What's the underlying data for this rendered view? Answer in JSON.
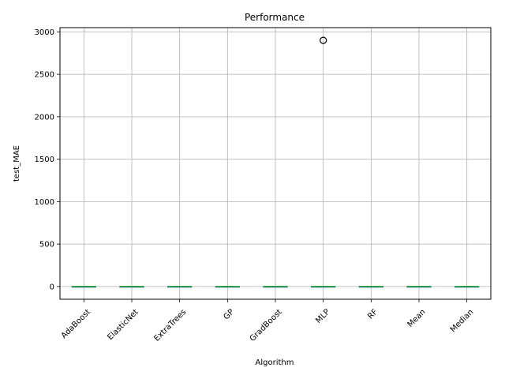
{
  "chart_data": {
    "type": "box",
    "title": "Performance",
    "xlabel": "Algorithm",
    "ylabel": "test_MAE",
    "categories": [
      "AdaBoost",
      "ElasticNet",
      "ExtraTrees",
      "GP",
      "GradBoost",
      "MLP",
      "RF",
      "Mean",
      "Median"
    ],
    "ylim": [
      -150,
      3050
    ],
    "yticks": [
      0,
      500,
      1000,
      1500,
      2000,
      2500,
      3000
    ],
    "grid": true,
    "boxes": [
      {
        "category": "AdaBoost",
        "whisker_low": -2,
        "q1": -1,
        "median": 0,
        "q3": 1,
        "whisker_high": 2,
        "outliers": []
      },
      {
        "category": "ElasticNet",
        "whisker_low": -2,
        "q1": -1,
        "median": 0,
        "q3": 1,
        "whisker_high": 2,
        "outliers": []
      },
      {
        "category": "ExtraTrees",
        "whisker_low": -2,
        "q1": -1,
        "median": 0,
        "q3": 1,
        "whisker_high": 2,
        "outliers": []
      },
      {
        "category": "GP",
        "whisker_low": -2,
        "q1": -1,
        "median": 0,
        "q3": 1,
        "whisker_high": 2,
        "outliers": []
      },
      {
        "category": "GradBoost",
        "whisker_low": -2,
        "q1": -1,
        "median": 0,
        "q3": 1,
        "whisker_high": 2,
        "outliers": []
      },
      {
        "category": "MLP",
        "whisker_low": -2,
        "q1": -1,
        "median": 0,
        "q3": 1,
        "whisker_high": 2,
        "outliers": [
          2900
        ]
      },
      {
        "category": "RF",
        "whisker_low": -2,
        "q1": -1,
        "median": 0,
        "q3": 1,
        "whisker_high": 2,
        "outliers": []
      },
      {
        "category": "Mean",
        "whisker_low": -2,
        "q1": -1,
        "median": 0,
        "q3": 1,
        "whisker_high": 2,
        "outliers": []
      },
      {
        "category": "Median",
        "whisker_low": -2,
        "q1": -1,
        "median": 0,
        "q3": 1,
        "whisker_high": 2,
        "outliers": []
      }
    ],
    "colors": {
      "box": "#1f77b4",
      "median": "#2ca02c",
      "grid": "#b0b0b0",
      "outlier_edge": "#000000"
    }
  }
}
